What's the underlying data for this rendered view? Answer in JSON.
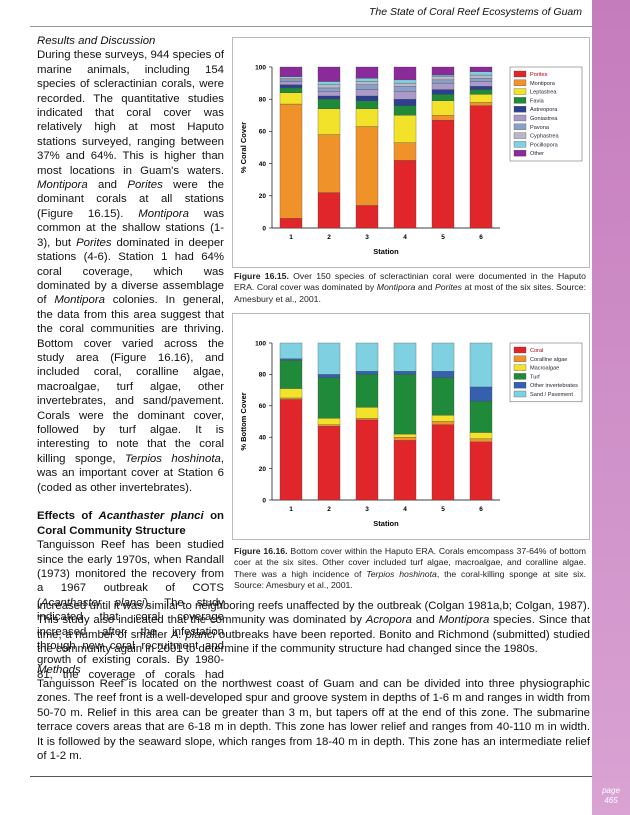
{
  "header": {
    "title": "The State of Coral Reef Ecosystems of Guam",
    "page_label": "page",
    "page_number": "465"
  },
  "left_column": {
    "heading1": "Results and Discussion",
    "paragraph1": [
      "During these surveys, 944 species of marine animals, including 154 species of scleractinian corals, were recorded.  The quantitative studies indicated that coral cover was relatively high at most Haputo stations surveyed, ranging between 37% and 64%.  This is higher than most locations in Guam's waters.  ",
      "Montipora",
      " and ",
      "Porites",
      " were the dominant corals at all stations (Figure 16.15).  ",
      "Montipora",
      " was common at the shallow stations (1-3), but ",
      "Porites",
      " dominated in deeper stations (4-6).  Station 1 had 64% coral coverage, which was dominated by a diverse assemblage of ",
      "Montipora",
      " colonies.  In general, the data from this area suggest that the coral communities are thriving.  Bottom cover varied across the study area (Figure 16.16), and included coral, coralline algae, macroalgae, turf algae, other invertebrates, and sand/pavement.  Corals were the dominant cover, followed by turf algae.  It is interesting to note that the coral killing sponge, ",
      "Terpios hoshinota",
      ", was an important cover at Station 6 (coded as other invertebrates)."
    ],
    "heading2": [
      "Effects of ",
      "Acanthaster planci",
      " on Coral Community Structure"
    ],
    "paragraph2": [
      "Tanguisson Reef has been studied since the early 1970s, when Randall (1973) monitored the recovery from a 1967 outbreak of COTS (",
      "Acanthaster planci",
      ").  The study indicated that coral coverage increased after the infestation through new coral recruitment and growth of existing corals.  By 1980-81, the coverage of corals had"
    ]
  },
  "continuation": [
    "increased until it was similar to neighboring reefs unaffected by the outbreak (Colgan 1981a,b; Colgan, 1987).  This study also indicated that the community was dominated by ",
    "Acropora",
    " and ",
    "Montipora",
    " species.  Since that time, a number of smaller ",
    "A. planci",
    " outbreaks have been reported.  Bonito and Richmond (submitted) studied the community again in 2001 to determine if the community structure had changed since the 1980s."
  ],
  "methods": {
    "heading": "Methods",
    "paragraph": [
      "Tanguisson Reef is located on the northwest coast of Guam and can be divided into three physiographic zones.  The reef front is a well-developed spur and groove system in depths of 1-6 m and ranges in width from 50-70 m.  Relief in this area can be greater than 3 m, but tapers off at the end of this zone.  The submarine terrace covers areas that are 6-18 m in depth.  This zone has lower relief and ranges from 40-110 m in width.  It is followed by the seaward slope, which ranges from 18-40 m in depth.  This zone has an intermediate relief of 1-2 m."
    ]
  },
  "figures": [
    {
      "label": "Figure 16.15.",
      "caption": [
        "  Over 150 species of scleractinian coral were documented in the Haputo ERA.  Coral cover was dominated by ",
        "Montipora",
        " and ",
        "Porites",
        " at most of the six sites.  Source:  Amesbury et al., 2001."
      ]
    },
    {
      "label": "Figure 16.16.",
      "caption": [
        "  Bottom cover within the Haputo ERA.  Corals emcompass 37-64% of bottom coer at the six sites.  Other cover included turf algae, macroalgae, and coralline algae.  There was a high incidence of ",
        "Terpios hoshinota",
        ", the coral-killing sponge at site six.  Source:  Amesbury et al., 2001."
      ]
    }
  ],
  "chart_data": [
    {
      "type": "stacked_bar",
      "x_label": "Station",
      "y_label": "% Coral Cover",
      "legend": "right",
      "categories": [
        "1",
        "2",
        "3",
        "4",
        "5",
        "6"
      ],
      "ylim": [
        0,
        100
      ],
      "yticks": [
        0,
        20,
        40,
        60,
        80,
        100
      ],
      "series": [
        {
          "name": "Porites",
          "color": "#e0252b",
          "values": [
            6,
            22,
            14,
            42,
            67,
            76
          ]
        },
        {
          "name": "Montipora",
          "color": "#f0922a",
          "values": [
            71,
            36,
            49,
            11,
            3,
            2
          ]
        },
        {
          "name": "Leptastrea",
          "color": "#f2e32a",
          "values": [
            7,
            16,
            11,
            17,
            9,
            5
          ]
        },
        {
          "name": "Favia",
          "color": "#1f8a3a",
          "values": [
            3,
            6,
            5,
            6,
            4,
            3
          ]
        },
        {
          "name": "Astreopora",
          "color": "#2d3f8f",
          "values": [
            2,
            2,
            3,
            4,
            3,
            2
          ]
        },
        {
          "name": "Goniastrea",
          "color": "#a99ac9",
          "values": [
            2,
            3,
            4,
            5,
            4,
            3
          ]
        },
        {
          "name": "Pavona",
          "color": "#8aa0c8",
          "values": [
            1,
            2,
            3,
            3,
            2,
            2
          ]
        },
        {
          "name": "Cyphastrea",
          "color": "#b8b8c8",
          "values": [
            1,
            2,
            2,
            2,
            2,
            2
          ]
        },
        {
          "name": "Pocillopora",
          "color": "#7fd0e0",
          "values": [
            1,
            2,
            2,
            2,
            1,
            2
          ]
        },
        {
          "name": "Other",
          "color": "#8b2a9a",
          "values": [
            6,
            9,
            7,
            8,
            5,
            3
          ]
        }
      ]
    },
    {
      "type": "stacked_bar",
      "x_label": "Station",
      "y_label": "% Bottom Cover",
      "legend": "right",
      "categories": [
        "1",
        "2",
        "3",
        "4",
        "5",
        "6"
      ],
      "ylim": [
        0,
        100
      ],
      "yticks": [
        0,
        20,
        40,
        60,
        80,
        100
      ],
      "series": [
        {
          "name": "Coral",
          "color": "#e0252b",
          "values": [
            64,
            47,
            51,
            38,
            48,
            37
          ]
        },
        {
          "name": "Coralline algae",
          "color": "#f0922a",
          "values": [
            1,
            1,
            1,
            2,
            2,
            2
          ]
        },
        {
          "name": "Macroalgae",
          "color": "#f2e32a",
          "values": [
            6,
            4,
            7,
            2,
            4,
            4
          ]
        },
        {
          "name": "Turf",
          "color": "#1f8a3a",
          "values": [
            18,
            26,
            21,
            38,
            24,
            20
          ]
        },
        {
          "name": "Other invertebrates",
          "color": "#3560b0",
          "values": [
            1,
            2,
            2,
            2,
            4,
            9
          ]
        },
        {
          "name": "Sand / Pavement",
          "color": "#7fd0e0",
          "values": [
            10,
            20,
            18,
            18,
            18,
            28
          ]
        }
      ]
    }
  ]
}
